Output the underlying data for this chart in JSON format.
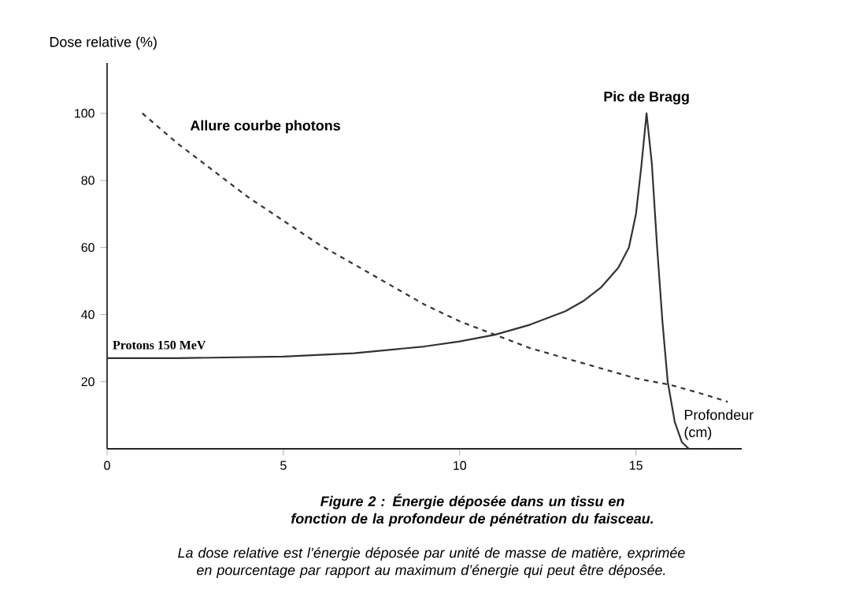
{
  "chart_data": {
    "type": "line",
    "title": "Figure 2 : Énergie déposée dans un tissu en fonction de la profondeur de pénétration du faisceau.",
    "subtitle": "La dose relative est l’énergie déposée par unité de masse de matière, exprimée en pourcentage par rapport au maximum d’énergie qui peut être déposée.",
    "xlabel": "Profondeur (cm)",
    "ylabel": "Dose relative (%)",
    "xlim": [
      0,
      18
    ],
    "ylim": [
      0,
      115
    ],
    "xticks": [
      0,
      5,
      10,
      15
    ],
    "yticks": [
      20,
      40,
      60,
      80,
      100
    ],
    "annotations": [
      {
        "text": "Pic de Bragg",
        "x": 15.3,
        "y": 100
      }
    ],
    "series": [
      {
        "name": "Protons 150 MeV",
        "color": "#333333",
        "line_style": "solid",
        "x": [
          0,
          2,
          5,
          7,
          9,
          10,
          11,
          12,
          13,
          13.5,
          14,
          14.5,
          14.8,
          15,
          15.15,
          15.3,
          15.45,
          15.6,
          15.75,
          15.9,
          16.1,
          16.3,
          16.5
        ],
        "values": [
          27,
          27,
          27.5,
          28.5,
          30.5,
          32,
          34,
          37,
          41,
          44,
          48,
          54,
          60,
          70,
          84,
          100,
          85,
          60,
          38,
          20,
          8,
          2,
          0
        ]
      },
      {
        "name": "Allure courbe photons",
        "color": "#333333",
        "line_style": "dashed",
        "x": [
          1,
          2,
          3,
          4,
          5,
          6,
          7,
          8,
          9,
          10,
          11,
          12,
          13,
          14,
          15,
          16,
          17,
          17.6
        ],
        "values": [
          100,
          91,
          83,
          75,
          68,
          61,
          55,
          49,
          43,
          38,
          34,
          30,
          27,
          24,
          21,
          19,
          16,
          14
        ]
      }
    ]
  }
}
